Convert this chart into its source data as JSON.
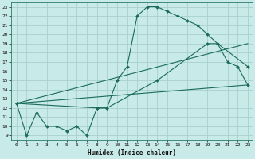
{
  "xlabel": "Humidex (Indice chaleur)",
  "bg_color": "#c8eae8",
  "grid_color": "#a8d0ce",
  "line_color": "#1a6b5a",
  "xlim": [
    -0.5,
    23.5
  ],
  "ylim": [
    8.5,
    23.5
  ],
  "yticks": [
    9,
    10,
    11,
    12,
    13,
    14,
    15,
    16,
    17,
    18,
    19,
    20,
    21,
    22,
    23
  ],
  "xticks": [
    0,
    1,
    2,
    3,
    4,
    5,
    6,
    7,
    8,
    9,
    10,
    11,
    12,
    13,
    14,
    15,
    16,
    17,
    18,
    19,
    20,
    21,
    22,
    23
  ],
  "line1_x": [
    0,
    1,
    2,
    3,
    4,
    5,
    6,
    7,
    8,
    9,
    10,
    11,
    12,
    13,
    14,
    15,
    16,
    17,
    18,
    19,
    20,
    21,
    22,
    23
  ],
  "line1_y": [
    12.5,
    9,
    11.5,
    10,
    10,
    9.5,
    10,
    9,
    12,
    12,
    15,
    16.5,
    22,
    23,
    23,
    22.5,
    22,
    21.5,
    21,
    20,
    19,
    17,
    16.5,
    14.5
  ],
  "line2_x": [
    0,
    8,
    9,
    14,
    19,
    20,
    23
  ],
  "line2_y": [
    12.5,
    12,
    12,
    15,
    19,
    19,
    16.5
  ],
  "line3_x": [
    0,
    23
  ],
  "line3_y": [
    12.5,
    14.5
  ],
  "line4_x": [
    0,
    23
  ],
  "line4_y": [
    12.5,
    19.0
  ]
}
